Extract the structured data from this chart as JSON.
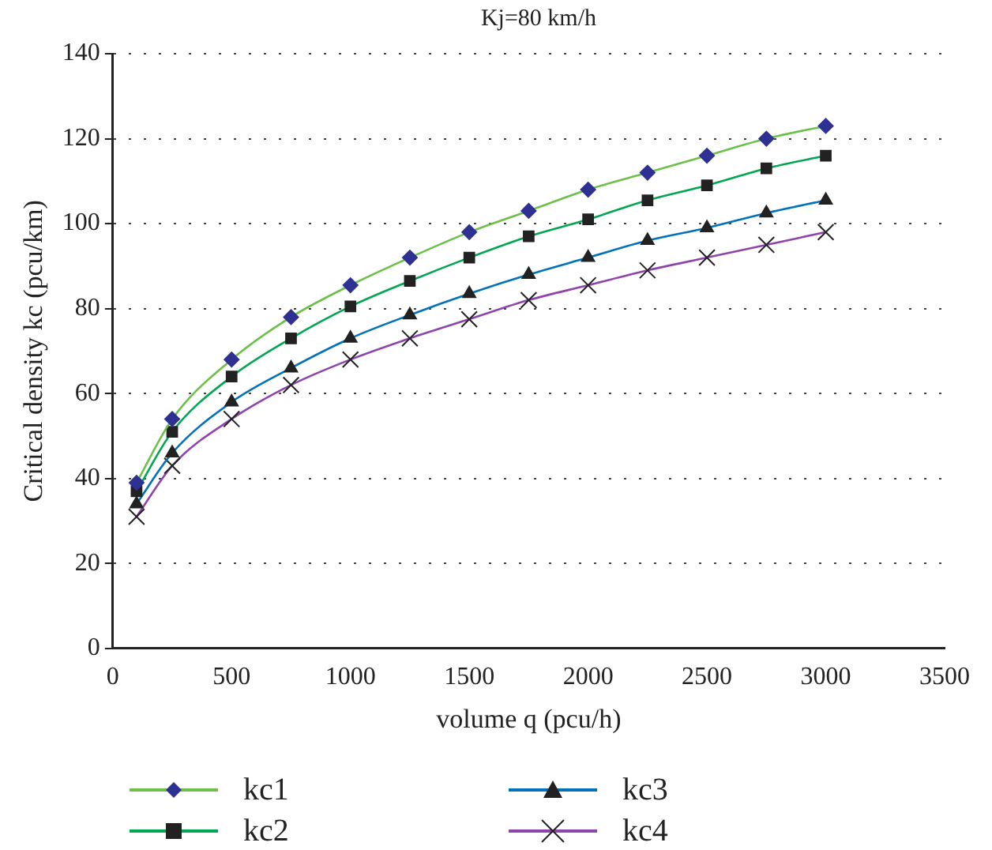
{
  "chart_data": {
    "type": "line",
    "title": "Kj=80 km/h",
    "xlabel": "volume q (pcu/h)",
    "ylabel": "Critical density kc (pcu/km)",
    "x": [
      100,
      250,
      500,
      750,
      1000,
      1250,
      1500,
      1750,
      2000,
      2250,
      2500,
      2750,
      3000
    ],
    "series": [
      {
        "name": "kc1",
        "color": "#6cc04a",
        "marker": "diamond",
        "values": [
          39,
          54,
          68,
          78,
          85.5,
          92,
          98,
          103,
          108,
          112,
          116,
          120,
          123
        ]
      },
      {
        "name": "kc2",
        "color": "#00a651",
        "marker": "square",
        "values": [
          37,
          51,
          64,
          73,
          80.5,
          86.5,
          92,
          97,
          101,
          105.5,
          109,
          113,
          116
        ]
      },
      {
        "name": "kc3",
        "color": "#0072bc",
        "marker": "triangle",
        "values": [
          34,
          46,
          58,
          66,
          73,
          78.5,
          83.5,
          88,
          92,
          96,
          99,
          102.5,
          105.5
        ]
      },
      {
        "name": "kc4",
        "color": "#8e44ad",
        "marker": "cross",
        "values": [
          31,
          43,
          54,
          62,
          68,
          73,
          77.5,
          82,
          85.5,
          89,
          92,
          95,
          98
        ]
      }
    ],
    "xlim": [
      0,
      3500
    ],
    "xticks": [
      0,
      500,
      1000,
      1500,
      2000,
      2500,
      3000,
      3500
    ],
    "ylim": [
      0,
      140
    ],
    "yticks": [
      0,
      20,
      40,
      60,
      80,
      100,
      120,
      140
    ],
    "grid": "y",
    "legend": "bottom"
  }
}
